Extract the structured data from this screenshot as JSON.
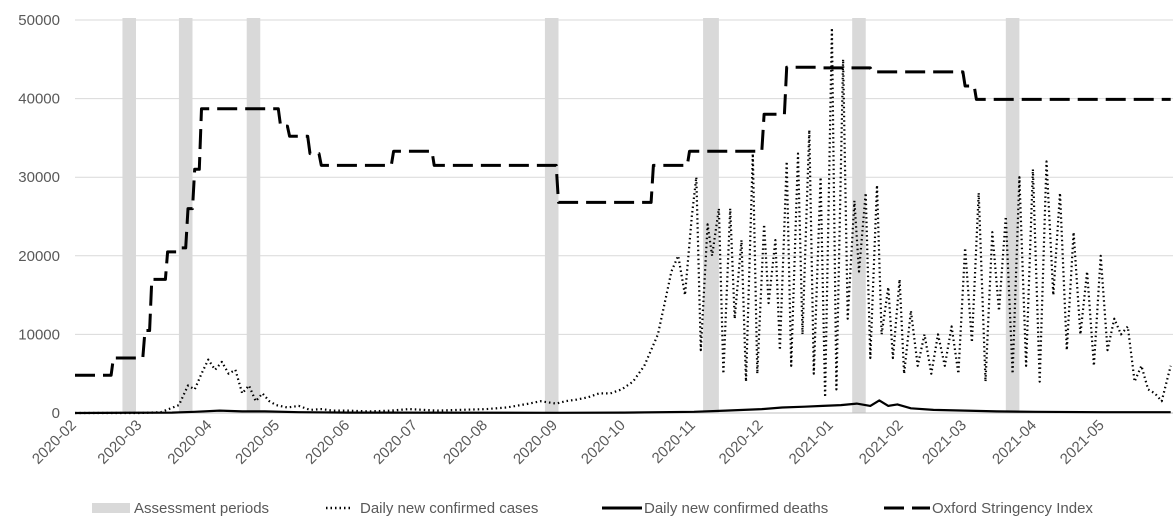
{
  "chart_data": {
    "type": "line",
    "title": "",
    "xlabel": "",
    "ylabel": "",
    "ylim": [
      0,
      50000
    ],
    "xlim": [
      "2020-02-01",
      "2021-06-01"
    ],
    "grid": true,
    "legend_position": "bottom",
    "y_ticks": [
      "0",
      "10000",
      "20000",
      "30000",
      "40000",
      "50000"
    ],
    "x_ticks": [
      "2020-02",
      "2020-03",
      "2020-04",
      "2020-05",
      "2020-06",
      "2020-07",
      "2020-08",
      "2020-09",
      "2020-10",
      "2020-11",
      "2020-12",
      "2021-01",
      "2021-02",
      "2021-03",
      "2021-04",
      "2021-05"
    ],
    "assessment_periods": {
      "name": "Assessment periods",
      "color": "#d9d9d9",
      "ranges": [
        [
          "2020-02-22",
          "2020-02-28"
        ],
        [
          "2020-03-18",
          "2020-03-24"
        ],
        [
          "2020-04-17",
          "2020-04-23"
        ],
        [
          "2020-08-27",
          "2020-09-02"
        ],
        [
          "2020-11-05",
          "2020-11-12"
        ],
        [
          "2021-01-10",
          "2021-01-16"
        ],
        [
          "2021-03-19",
          "2021-03-25"
        ]
      ]
    },
    "series": [
      {
        "name": "Daily new confirmed cases",
        "style": "dotted",
        "color": "#000000",
        "x": [
          "2020-02-01",
          "2020-03-01",
          "2020-03-10",
          "2020-03-18",
          "2020-03-22",
          "2020-03-25",
          "2020-03-28",
          "2020-03-31",
          "2020-04-03",
          "2020-04-06",
          "2020-04-09",
          "2020-04-12",
          "2020-04-15",
          "2020-04-18",
          "2020-04-21",
          "2020-04-24",
          "2020-04-27",
          "2020-04-30",
          "2020-05-05",
          "2020-05-10",
          "2020-05-15",
          "2020-05-20",
          "2020-05-25",
          "2020-06-01",
          "2020-06-10",
          "2020-06-20",
          "2020-06-28",
          "2020-07-10",
          "2020-07-20",
          "2020-08-01",
          "2020-08-10",
          "2020-08-20",
          "2020-08-25",
          "2020-09-01",
          "2020-09-05",
          "2020-09-10",
          "2020-09-15",
          "2020-09-20",
          "2020-09-25",
          "2020-09-30",
          "2020-10-05",
          "2020-10-10",
          "2020-10-13",
          "2020-10-16",
          "2020-10-19",
          "2020-10-22",
          "2020-10-25",
          "2020-10-28",
          "2020-10-31",
          "2020-11-02",
          "2020-11-04",
          "2020-11-07",
          "2020-11-09",
          "2020-11-12",
          "2020-11-14",
          "2020-11-17",
          "2020-11-19",
          "2020-11-22",
          "2020-11-24",
          "2020-11-27",
          "2020-11-29",
          "2020-12-02",
          "2020-12-04",
          "2020-12-07",
          "2020-12-09",
          "2020-12-12",
          "2020-12-14",
          "2020-12-17",
          "2020-12-19",
          "2020-12-22",
          "2020-12-24",
          "2020-12-27",
          "2020-12-29",
          "2021-01-01",
          "2021-01-03",
          "2021-01-06",
          "2021-01-08",
          "2021-01-11",
          "2021-01-13",
          "2021-01-16",
          "2021-01-18",
          "2021-01-21",
          "2021-01-23",
          "2021-01-26",
          "2021-01-28",
          "2021-01-31",
          "2021-02-02",
          "2021-02-05",
          "2021-02-08",
          "2021-02-11",
          "2021-02-14",
          "2021-02-17",
          "2021-02-20",
          "2021-02-23",
          "2021-02-26",
          "2021-03-01",
          "2021-03-04",
          "2021-03-07",
          "2021-03-10",
          "2021-03-13",
          "2021-03-16",
          "2021-03-19",
          "2021-03-22",
          "2021-03-25",
          "2021-03-28",
          "2021-03-31",
          "2021-04-03",
          "2021-04-06",
          "2021-04-09",
          "2021-04-12",
          "2021-04-15",
          "2021-04-18",
          "2021-04-21",
          "2021-04-24",
          "2021-04-27",
          "2021-04-30",
          "2021-05-03",
          "2021-05-06",
          "2021-05-09",
          "2021-05-12",
          "2021-05-15",
          "2021-05-18",
          "2021-05-21",
          "2021-05-24",
          "2021-05-27",
          "2021-05-31"
        ],
        "values": [
          0,
          0,
          100,
          1000,
          3500,
          3000,
          5000,
          6800,
          5500,
          6500,
          5000,
          5500,
          2500,
          3500,
          1500,
          2500,
          1500,
          1000,
          700,
          900,
          400,
          500,
          300,
          300,
          200,
          300,
          500,
          300,
          400,
          500,
          700,
          1200,
          1500,
          1200,
          1500,
          1700,
          2000,
          2500,
          2500,
          3000,
          4000,
          6000,
          8000,
          10000,
          14000,
          18000,
          20000,
          15000,
          25000,
          30000,
          8000,
          24000,
          20000,
          26000,
          5000,
          26000,
          12000,
          22000,
          4000,
          33000,
          5000,
          24000,
          14000,
          22000,
          8000,
          32000,
          6000,
          33000,
          10000,
          36000,
          5000,
          30000,
          2000,
          49000,
          3000,
          45000,
          12000,
          27000,
          18000,
          28000,
          7000,
          29000,
          10000,
          16000,
          7000,
          17000,
          5000,
          13000,
          6000,
          10000,
          5000,
          10000,
          6000,
          11000,
          5000,
          21000,
          9000,
          28000,
          4000,
          23000,
          13000,
          25000,
          5000,
          30000,
          6000,
          31000,
          4000,
          32000,
          15000,
          28000,
          8000,
          23000,
          10000,
          18000,
          6000,
          20000,
          8000,
          12000,
          10000,
          11000,
          4000,
          6000,
          3000,
          2500,
          1500,
          6000
        ]
      },
      {
        "name": "Daily new confirmed deaths",
        "style": "solid",
        "color": "#000000",
        "x": [
          "2020-02-01",
          "2020-03-15",
          "2020-03-25",
          "2020-04-05",
          "2020-04-15",
          "2020-04-25",
          "2020-05-10",
          "2020-06-01",
          "2020-09-01",
          "2020-10-01",
          "2020-11-01",
          "2020-11-15",
          "2020-12-01",
          "2020-12-10",
          "2020-12-20",
          "2020-12-28",
          "2021-01-05",
          "2021-01-12",
          "2021-01-18",
          "2021-01-22",
          "2021-01-26",
          "2021-01-30",
          "2021-02-05",
          "2021-02-15",
          "2021-03-01",
          "2021-03-15",
          "2021-04-01",
          "2021-05-01",
          "2021-05-31"
        ],
        "values": [
          0,
          50,
          150,
          300,
          200,
          200,
          100,
          50,
          30,
          50,
          150,
          300,
          500,
          700,
          800,
          900,
          1000,
          1200,
          900,
          1600,
          900,
          1100,
          600,
          400,
          300,
          200,
          150,
          100,
          100
        ]
      },
      {
        "name": "Oxford Stringency Index",
        "style": "dashed",
        "color": "#000000",
        "x": [
          "2020-02-01",
          "2020-02-17",
          "2020-02-18",
          "2020-03-02",
          "2020-03-03",
          "2020-03-05",
          "2020-03-06",
          "2020-03-12",
          "2020-03-13",
          "2020-03-17",
          "2020-03-18",
          "2020-03-21",
          "2020-03-22",
          "2020-03-24",
          "2020-03-25",
          "2020-03-27",
          "2020-03-28",
          "2020-05-01",
          "2020-05-02",
          "2020-05-05",
          "2020-05-06",
          "2020-05-14",
          "2020-05-15",
          "2020-05-19",
          "2020-05-20",
          "2020-06-20",
          "2020-06-21",
          "2020-07-08",
          "2020-07-09",
          "2020-09-01",
          "2020-09-02",
          "2020-10-13",
          "2020-10-14",
          "2020-10-29",
          "2020-10-30",
          "2020-11-22",
          "2020-11-23",
          "2020-12-01",
          "2020-12-02",
          "2020-12-11",
          "2020-12-12",
          "2020-12-25",
          "2020-12-26",
          "2021-01-18",
          "2021-01-19",
          "2021-02-28",
          "2021-02-29",
          "2021-03-05",
          "2021-03-06",
          "2021-05-31"
        ],
        "values": [
          4800,
          4800,
          7000,
          7000,
          10500,
          10500,
          17000,
          17000,
          20500,
          20500,
          21000,
          21000,
          26000,
          26000,
          31000,
          31000,
          38700,
          38700,
          36500,
          36500,
          35200,
          35200,
          33000,
          33000,
          31500,
          31500,
          33300,
          33300,
          31500,
          31500,
          26800,
          26800,
          31500,
          31500,
          33300,
          33300,
          33300,
          33300,
          38000,
          38000,
          44000,
          44000,
          43900,
          43900,
          43400,
          43400,
          41600,
          41600,
          39900,
          39900
        ]
      }
    ]
  }
}
